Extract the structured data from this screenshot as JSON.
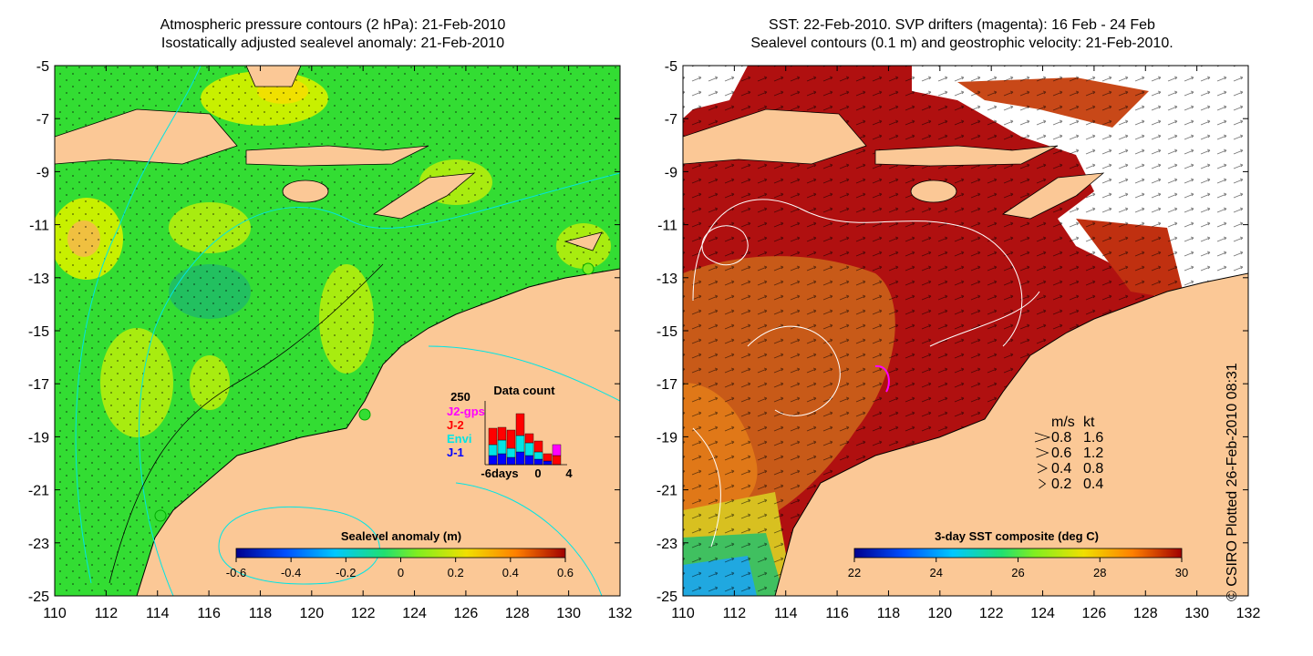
{
  "left_panel": {
    "title_line1": "Atmospheric pressure contours (2 hPa): 21-Feb-2010",
    "title_line2": "Isostatically adjusted sealevel anomaly: 21-Feb-2010",
    "colorbar_title": "Sealevel anomaly (m)",
    "colorbar_ticks": [
      "-0.6",
      "-0.4",
      "-0.2",
      "0",
      "0.2",
      "0.4",
      "0.6"
    ],
    "data_count": {
      "title": "Data count",
      "ymax_label": "250",
      "legend": [
        {
          "label": "J2-gps",
          "color": "#ff00ff"
        },
        {
          "label": "J-2",
          "color": "#ff0000"
        },
        {
          "label": "Envi",
          "color": "#00e5e5"
        },
        {
          "label": "J-1",
          "color": "#0000ff"
        }
      ],
      "x_labels": [
        "-6days",
        "0",
        "4"
      ]
    }
  },
  "right_panel": {
    "title_line1": "SST: 22-Feb-2010. SVP drifters (magenta): 16 Feb - 24 Feb",
    "title_line2": "Sealevel contours (0.1 m) and geostrophic velocity: 21-Feb-2010.",
    "colorbar_title": "3-day SST composite (deg C)",
    "colorbar_ticks": [
      "22",
      "24",
      "26",
      "28",
      "30"
    ],
    "velocity_legend": {
      "header_ms": "m/s",
      "header_kt": "kt",
      "rows": [
        {
          "ms": "0.8",
          "kt": "1.6"
        },
        {
          "ms": "0.6",
          "kt": "1.2"
        },
        {
          "ms": "0.4",
          "kt": "0.8"
        },
        {
          "ms": "0.2",
          "kt": "0.4"
        }
      ]
    }
  },
  "axes": {
    "x_ticks": [
      "110",
      "112",
      "114",
      "116",
      "118",
      "120",
      "122",
      "124",
      "126",
      "128",
      "130",
      "132"
    ],
    "y_ticks": [
      "-5",
      "-7",
      "-9",
      "-11",
      "-13",
      "-15",
      "-17",
      "-19",
      "-21",
      "-23",
      "-25"
    ]
  },
  "credit": "© CSIRO Plotted 26-Feb-2010 08:31",
  "colors": {
    "land": "#fbc896",
    "sla_base": "#33dd33",
    "sst_base": "#b01010",
    "contour": "#00e5e5"
  }
}
